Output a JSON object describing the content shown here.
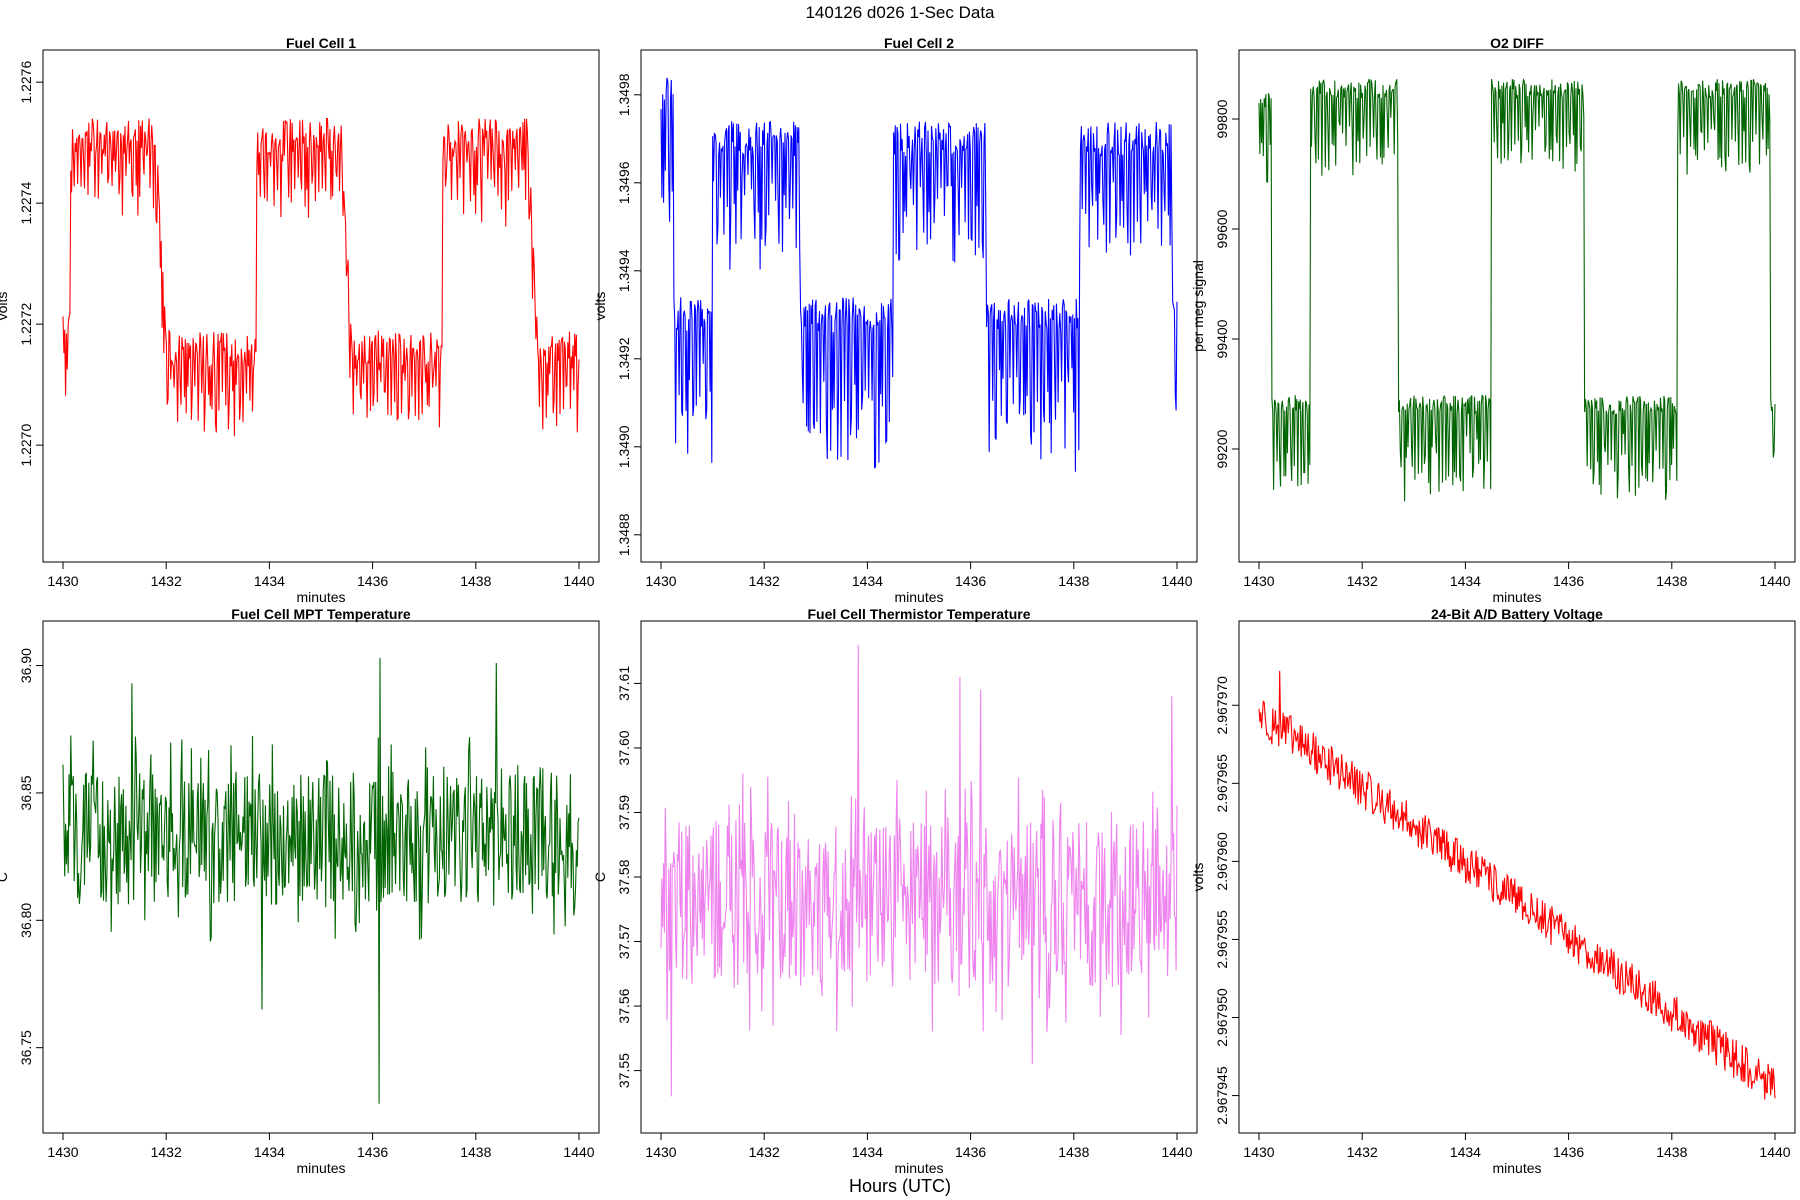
{
  "figure": {
    "title": "140126   d026   1-Sec Data",
    "bottom_label": "Hours (UTC)"
  },
  "chart_data": [
    {
      "type": "line",
      "title": "Fuel Cell 1",
      "xlabel": "minutes",
      "ylabel": "volts",
      "color": "#ff0000",
      "xlim": [
        1430,
        1440
      ],
      "ylim": [
        1.22683,
        1.22763
      ],
      "xticks": [
        "1430",
        "1432",
        "1434",
        "1436",
        "1438",
        "1440"
      ],
      "yticks": [
        "1.2270",
        "1.2272",
        "1.2274",
        "1.2276"
      ],
      "profile": "square",
      "params": {
        "low": 1.22716,
        "high": 1.22751,
        "start": 1.2272,
        "down_dip": 0.00012,
        "up_dip": 0.00012,
        "noise": 3e-05,
        "drift": 0.0
      }
    },
    {
      "type": "line",
      "title": "Fuel Cell 2",
      "xlabel": "minutes",
      "ylabel": "volts",
      "color": "#0000ff",
      "xlim": [
        1430,
        1440
      ],
      "ylim": [
        1.34877,
        1.34987
      ],
      "xticks": [
        "1430",
        "1432",
        "1434",
        "1436",
        "1438",
        "1440"
      ],
      "yticks": [
        "1.3488",
        "1.3490",
        "1.3492",
        "1.3494",
        "1.3496",
        "1.3498"
      ],
      "profile": "square_inverted",
      "params": {
        "low": 1.3493,
        "high": 1.3497,
        "start": 1.3498,
        "down_dip": 0.00034,
        "up_dip": 0.00028,
        "noise": 4e-05,
        "drift": 0.0
      }
    },
    {
      "type": "line",
      "title": "O2 DIFF",
      "xlabel": "minutes",
      "ylabel": "per meg signal",
      "color": "#006400",
      "xlim": [
        1430,
        1440
      ],
      "ylim": [
        99020,
        99900
      ],
      "xticks": [
        "1430",
        "1432",
        "1434",
        "1436",
        "1438",
        "1440"
      ],
      "yticks": [
        "99200",
        "99400",
        "99600",
        "99800"
      ],
      "profile": "square_inverted",
      "params": {
        "low": 99280,
        "high": 99855,
        "start": 99830,
        "down_dip": 160,
        "up_dip": 150,
        "noise": 18,
        "drift": 0.0
      }
    },
    {
      "type": "line",
      "title": "Fuel Cell MPT Temperature",
      "xlabel": "minutes",
      "ylabel": "C",
      "color": "#006400",
      "xlim": [
        1430,
        1440
      ],
      "ylim": [
        36.722,
        36.912
      ],
      "xticks": [
        "1430",
        "1432",
        "1434",
        "1436",
        "1438",
        "1440"
      ],
      "yticks": [
        "36.75",
        "36.80",
        "36.85",
        "36.90"
      ],
      "profile": "noise",
      "params": {
        "mean": 36.832,
        "amp": 0.026,
        "spikes": [
          [
            13.3,
            36.893
          ],
          [
            38.6,
            36.765
          ],
          [
            61.5,
            36.903
          ],
          [
            61.2,
            36.728
          ],
          [
            84.0,
            36.901
          ]
        ]
      }
    },
    {
      "type": "line",
      "title": "Fuel Cell Thermistor Temperature",
      "xlabel": "minutes",
      "ylabel": "C",
      "color": "#ee82ee",
      "xlim": [
        1430,
        1440
      ],
      "ylim": [
        37.5425,
        37.6175
      ],
      "xticks": [
        "1430",
        "1432",
        "1434",
        "1436",
        "1438",
        "1440"
      ],
      "yticks": [
        "37.55",
        "37.56",
        "37.57",
        "37.58",
        "37.59",
        "37.60",
        "37.61"
      ],
      "profile": "noise",
      "params": {
        "mean": 37.576,
        "amp": 0.013,
        "spikes": [
          [
            2.0,
            37.546
          ],
          [
            38.2,
            37.616
          ],
          [
            58.0,
            37.611
          ],
          [
            62.0,
            37.609
          ],
          [
            72.0,
            37.551
          ],
          [
            99.0,
            37.608
          ]
        ]
      }
    },
    {
      "type": "line",
      "title": "24-Bit A/D Battery Voltage",
      "xlabel": "minutes",
      "ylabel": "volts",
      "color": "#ff0000",
      "xlim": [
        1430,
        1440
      ],
      "ylim": [
        2.9679435,
        2.9679745
      ],
      "xticks": [
        "1430",
        "1432",
        "1434",
        "1436",
        "1438",
        "1440"
      ],
      "yticks": [
        "2.967945",
        "2.967950",
        "2.967955",
        "2.967960",
        "2.967965",
        "2.967970"
      ],
      "profile": "trend",
      "params": {
        "start": 2.9679695,
        "end": 2.9679455,
        "amp": 1.3e-06,
        "spikes": [
          [
            4.0,
            2.9679722
          ],
          [
            2.5,
            2.9679675
          ]
        ]
      }
    }
  ]
}
